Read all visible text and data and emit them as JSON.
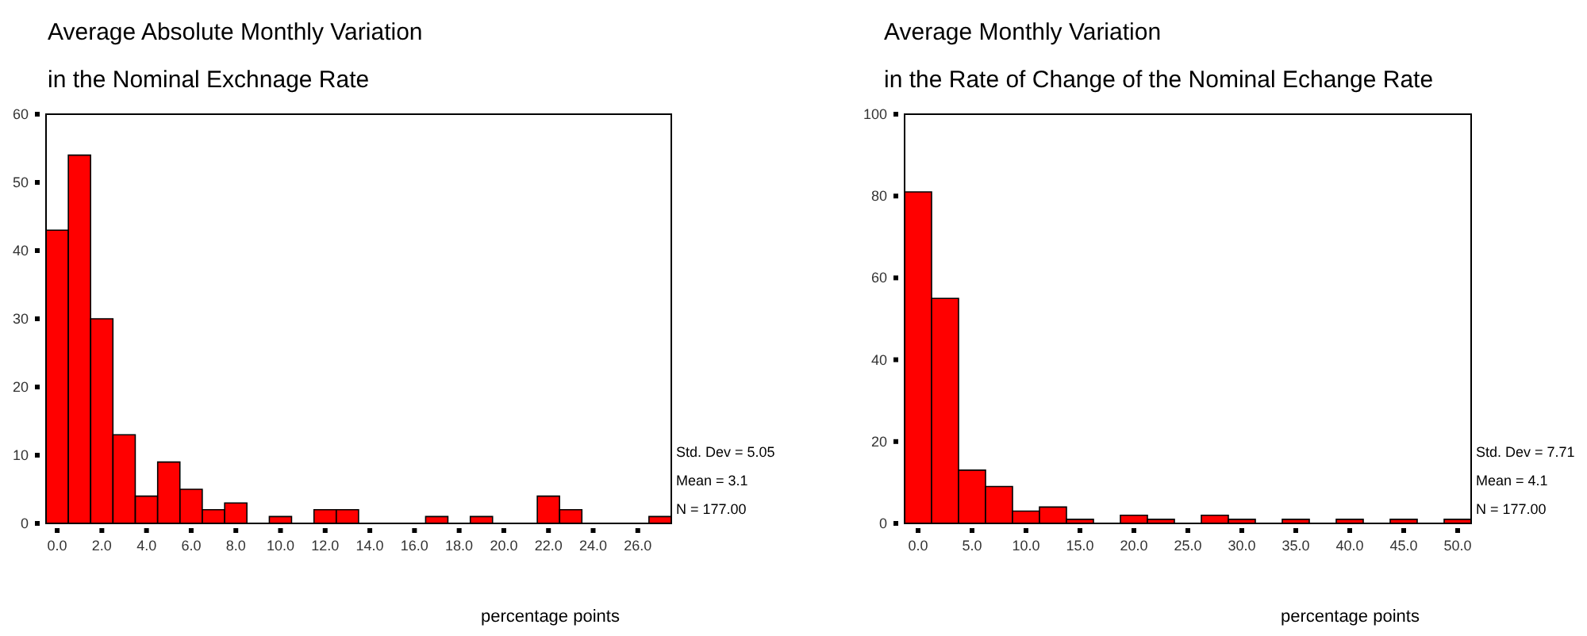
{
  "chart_data": [
    {
      "type": "histogram",
      "title": "Average Absolute Monthly Variation",
      "subtitle": "in the Nominal Exchnage Rate",
      "xlabel": "percentage points",
      "color": "#ff0000",
      "bins": [
        -0.5,
        0.5,
        1.5,
        2.5,
        3.5,
        4.5,
        5.5,
        6.5,
        7.5,
        8.5,
        9.5,
        10.5,
        11.5,
        12.5,
        13.5,
        14.5,
        15.5,
        16.5,
        17.5,
        18.5,
        19.5,
        20.5,
        21.5,
        22.5,
        23.5,
        24.5,
        25.5,
        26.5,
        27.5
      ],
      "values": [
        43,
        54,
        30,
        13,
        4,
        9,
        5,
        2,
        3,
        0,
        1,
        0,
        2,
        2,
        0,
        0,
        0,
        1,
        0,
        1,
        0,
        0,
        4,
        2,
        0,
        0,
        0,
        1
      ],
      "xlim": [
        -0.5,
        27.5
      ],
      "xticks": [
        {
          "value": 0,
          "label": "0.0"
        },
        {
          "value": 2,
          "label": "2.0"
        },
        {
          "value": 4,
          "label": "4.0"
        },
        {
          "value": 6,
          "label": "6.0"
        },
        {
          "value": 8,
          "label": "8.0"
        },
        {
          "value": 10,
          "label": "10.0"
        },
        {
          "value": 12,
          "label": "12.0"
        },
        {
          "value": 14,
          "label": "14.0"
        },
        {
          "value": 16,
          "label": "16.0"
        },
        {
          "value": 18,
          "label": "18.0"
        },
        {
          "value": 20,
          "label": "20.0"
        },
        {
          "value": 22,
          "label": "22.0"
        },
        {
          "value": 24,
          "label": "24.0"
        },
        {
          "value": 26,
          "label": "26.0"
        }
      ],
      "ylim": [
        0,
        60
      ],
      "yticks": [
        0,
        10,
        20,
        30,
        40,
        50,
        60
      ],
      "annotations": [
        "Std. Dev = 5.05",
        "Mean = 3.1",
        "N = 177.00"
      ]
    },
    {
      "type": "histogram",
      "title": "Average Monthly Variation",
      "subtitle": "in the Rate of Change of the Nominal Echange Rate",
      "xlabel": "percentage points",
      "color": "#ff0000",
      "bins": [
        -1.25,
        1.25,
        3.75,
        6.25,
        8.75,
        11.25,
        13.75,
        16.25,
        18.75,
        21.25,
        23.75,
        26.25,
        28.75,
        31.25,
        33.75,
        36.25,
        38.75,
        41.25,
        43.75,
        46.25,
        48.75,
        51.25
      ],
      "values": [
        81,
        55,
        13,
        9,
        3,
        4,
        1,
        0,
        2,
        1,
        0,
        2,
        1,
        0,
        1,
        0,
        1,
        0,
        1,
        0,
        1
      ],
      "xlim": [
        -1.25,
        51.25
      ],
      "xticks": [
        {
          "value": 0,
          "label": "0.0"
        },
        {
          "value": 5,
          "label": "5.0"
        },
        {
          "value": 10,
          "label": "10.0"
        },
        {
          "value": 15,
          "label": "15.0"
        },
        {
          "value": 20,
          "label": "20.0"
        },
        {
          "value": 25,
          "label": "25.0"
        },
        {
          "value": 30,
          "label": "30.0"
        },
        {
          "value": 35,
          "label": "35.0"
        },
        {
          "value": 40,
          "label": "40.0"
        },
        {
          "value": 45,
          "label": "45.0"
        },
        {
          "value": 50,
          "label": "50.0"
        }
      ],
      "ylim": [
        0,
        100
      ],
      "yticks": [
        0,
        20,
        40,
        60,
        80,
        100
      ],
      "annotations": [
        "Std. Dev = 7.71",
        "Mean = 4.1",
        "N = 177.00"
      ]
    }
  ]
}
